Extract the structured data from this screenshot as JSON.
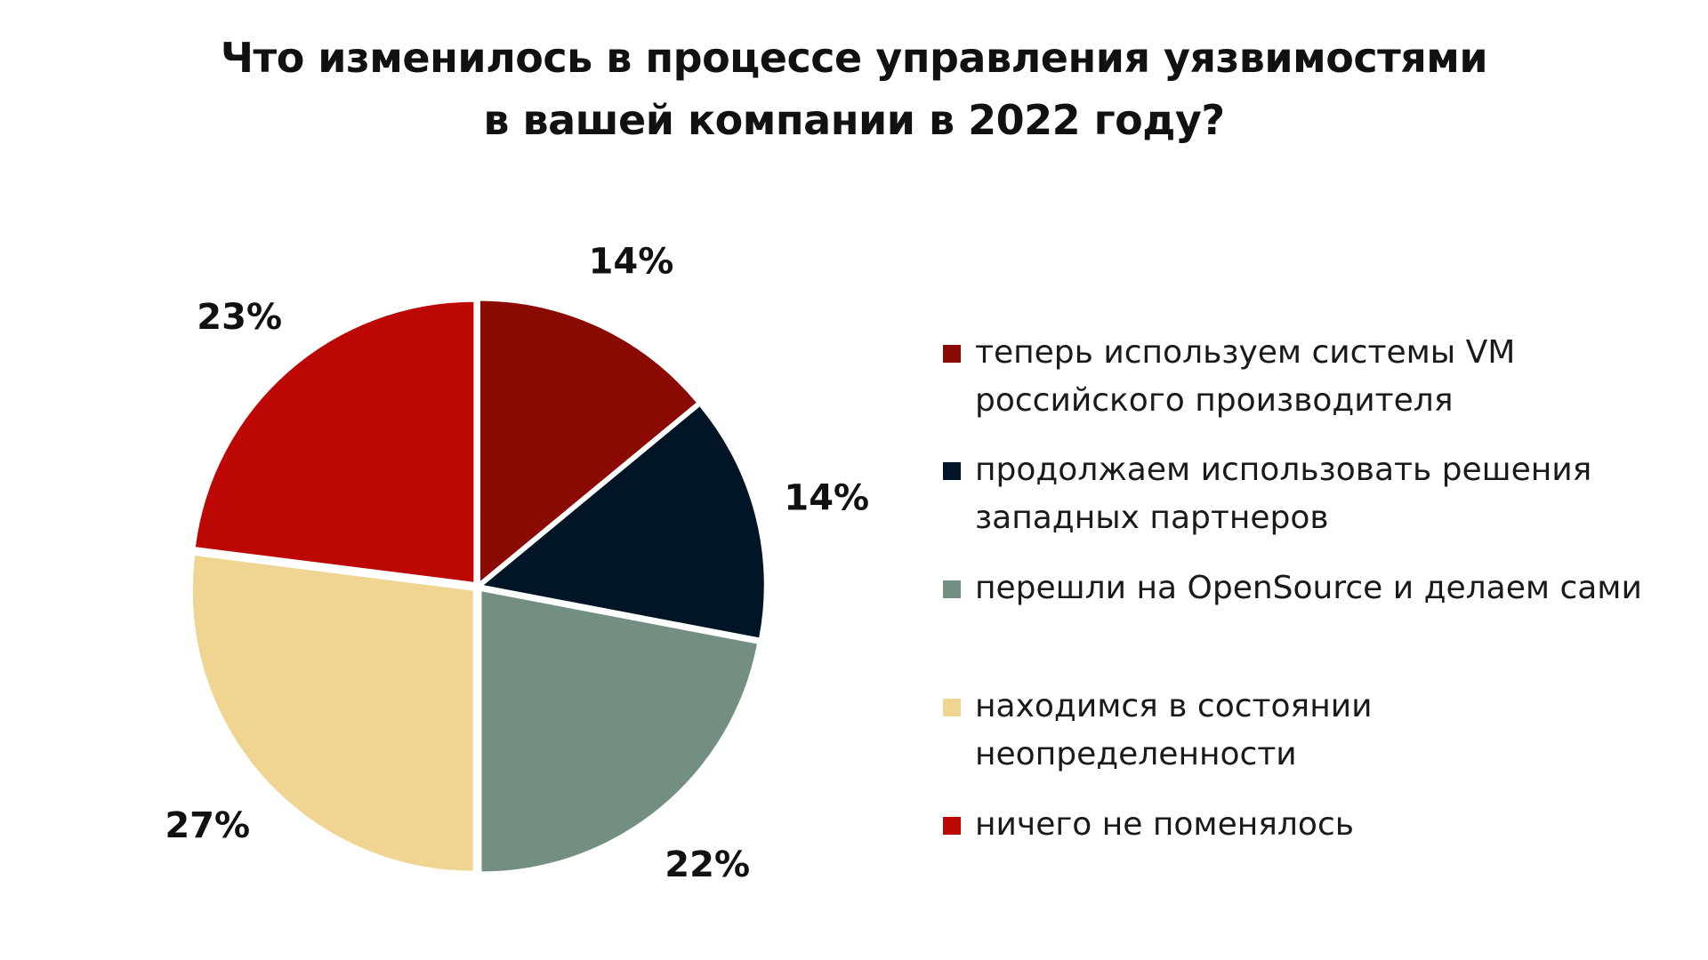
{
  "chart_data": {
    "type": "pie",
    "title": "Что изменилось в процессе управления уязвимостями в вашей компании в 2022 году?",
    "title_lines": [
      "Что изменилось в процессе управления уязвимостями",
      "в вашей компании в 2022 году?"
    ],
    "categories": [
      "теперь используем системы VM российского производителя",
      "продолжаем использовать решения западных партнеров",
      "перешли на OpenSource и делаем сами",
      "находимся в состоянии неопределенности",
      "ничего не поменялось"
    ],
    "legend_lines": [
      [
        "теперь используем системы VM",
        "российского производителя"
      ],
      [
        "продолжаем использовать решения",
        "западных партнеров"
      ],
      [
        "перешли на OpenSource и делаем сами"
      ],
      [
        "находимся в состоянии неопределенности"
      ],
      [
        "ничего не поменялось"
      ]
    ],
    "values": [
      14,
      14,
      22,
      27,
      23
    ],
    "labels": [
      "14%",
      "14%",
      "22%",
      "27%",
      "23%"
    ],
    "colors": [
      "#8b0a03",
      "#021526",
      "#728f81",
      "#f0d592",
      "#bc0704"
    ],
    "legend_position": "right",
    "start": "top",
    "direction": "clockwise"
  }
}
